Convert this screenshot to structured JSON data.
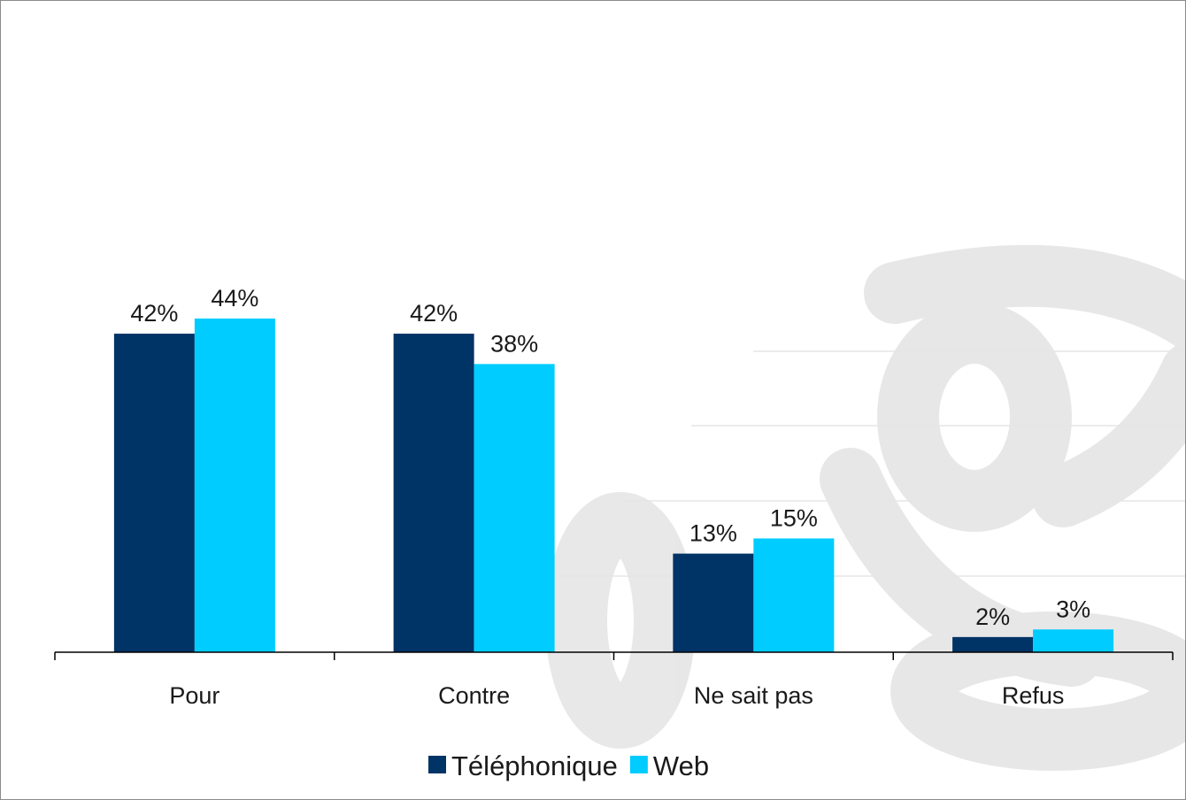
{
  "chart_data": {
    "type": "bar",
    "categories": [
      "Pour",
      "Contre",
      "Ne sait pas",
      "Refus"
    ],
    "series": [
      {
        "name": "Téléphonique",
        "color": "#003366",
        "values": [
          42,
          42,
          13,
          2
        ],
        "labels": [
          "42%",
          "42%",
          "13%",
          "2%"
        ]
      },
      {
        "name": "Web",
        "color": "#00CCFF",
        "values": [
          44,
          38,
          15,
          3
        ],
        "labels": [
          "44%",
          "38%",
          "15%",
          "3%"
        ]
      }
    ],
    "ylim": [
      0,
      100
    ],
    "value_suffix": "%",
    "legend_position": "bottom",
    "grid": false
  }
}
